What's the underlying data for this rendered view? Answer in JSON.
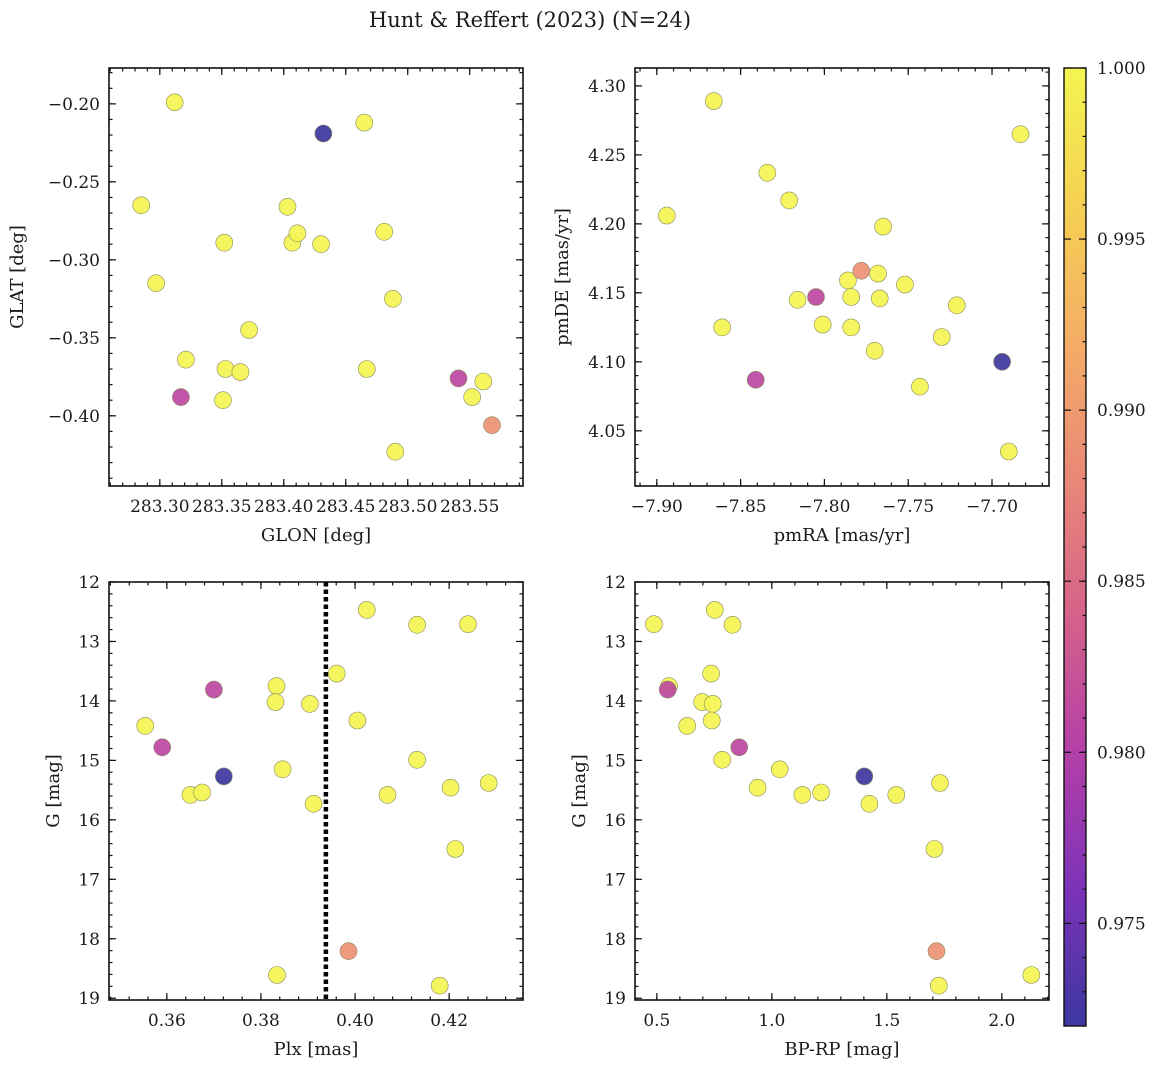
{
  "figure": {
    "title": "Hunt & Reffert (2023) (N=24)"
  },
  "colorbar": {
    "min": 0.972,
    "max": 1.0,
    "ticks": [
      0.975,
      0.98,
      0.985,
      0.99,
      0.995,
      1.0
    ],
    "tick_labels": [
      "0.975",
      "0.980",
      "0.985",
      "0.990",
      "0.995",
      "1.000"
    ],
    "colormap": "plasma",
    "colormap_stops": [
      "#3d37a0",
      "#7c33b8",
      "#b43fa8",
      "#d5628a",
      "#e98877",
      "#f4ad66",
      "#f5d052",
      "#f4f551"
    ]
  },
  "chart_data": [
    {
      "id": "glon-glat",
      "type": "scatter",
      "xlabel": "GLON [deg]",
      "ylabel": "GLAT [deg]",
      "xlim": [
        283.259,
        283.593
      ],
      "ylim": [
        -0.445,
        -0.177
      ],
      "y_inverted": false,
      "xticks": [
        283.3,
        283.35,
        283.4,
        283.45,
        283.5,
        283.55
      ],
      "xtick_labels": [
        "283.30",
        "283.35",
        "283.40",
        "283.45",
        "283.50",
        "283.55"
      ],
      "yticks": [
        -0.4,
        -0.35,
        -0.3,
        -0.25,
        -0.2
      ],
      "ytick_labels": [
        "−0.40",
        "−0.35",
        "−0.30",
        "−0.25",
        "−0.20"
      ],
      "points": [
        {
          "x": 283.312,
          "y": -0.199,
          "c": 1.0
        },
        {
          "x": 283.285,
          "y": -0.265,
          "c": 1.0
        },
        {
          "x": 283.297,
          "y": -0.315,
          "c": 1.0
        },
        {
          "x": 283.321,
          "y": -0.364,
          "c": 1.0
        },
        {
          "x": 283.352,
          "y": -0.289,
          "c": 1.0
        },
        {
          "x": 283.353,
          "y": -0.37,
          "c": 1.0
        },
        {
          "x": 283.351,
          "y": -0.39,
          "c": 1.0
        },
        {
          "x": 283.365,
          "y": -0.372,
          "c": 1.0
        },
        {
          "x": 283.372,
          "y": -0.345,
          "c": 1.0
        },
        {
          "x": 283.403,
          "y": -0.266,
          "c": 1.0
        },
        {
          "x": 283.407,
          "y": -0.289,
          "c": 1.0
        },
        {
          "x": 283.411,
          "y": -0.283,
          "c": 1.0
        },
        {
          "x": 283.43,
          "y": -0.29,
          "c": 1.0
        },
        {
          "x": 283.432,
          "y": -0.219,
          "c": 0.972
        },
        {
          "x": 283.465,
          "y": -0.212,
          "c": 1.0
        },
        {
          "x": 283.467,
          "y": -0.37,
          "c": 1.0
        },
        {
          "x": 283.481,
          "y": -0.282,
          "c": 1.0
        },
        {
          "x": 283.488,
          "y": -0.325,
          "c": 1.0
        },
        {
          "x": 283.49,
          "y": -0.423,
          "c": 1.0
        },
        {
          "x": 283.541,
          "y": -0.376,
          "c": 0.981
        },
        {
          "x": 283.552,
          "y": -0.388,
          "c": 1.0
        },
        {
          "x": 283.561,
          "y": -0.378,
          "c": 1.0
        },
        {
          "x": 283.568,
          "y": -0.406,
          "c": 0.989
        },
        {
          "x": 283.317,
          "y": -0.388,
          "c": 0.981
        }
      ]
    },
    {
      "id": "pmra-pmde",
      "type": "scatter",
      "xlabel": "pmRA [mas/yr]",
      "ylabel": "pmDE [mas/yr]",
      "xlim": [
        -7.913,
        -7.666
      ],
      "ylim": [
        4.01,
        4.313
      ],
      "y_inverted": false,
      "xticks": [
        -7.9,
        -7.85,
        -7.8,
        -7.75,
        -7.7
      ],
      "xtick_labels": [
        "−7.90",
        "−7.85",
        "−7.80",
        "−7.75",
        "−7.70"
      ],
      "yticks": [
        4.05,
        4.1,
        4.15,
        4.2,
        4.25,
        4.3
      ],
      "ytick_labels": [
        "4.05",
        "4.10",
        "4.15",
        "4.20",
        "4.25",
        "4.30"
      ],
      "points": [
        {
          "x": -7.866,
          "y": 4.289,
          "c": 1.0
        },
        {
          "x": -7.894,
          "y": 4.206,
          "c": 1.0
        },
        {
          "x": -7.834,
          "y": 4.237,
          "c": 1.0
        },
        {
          "x": -7.821,
          "y": 4.217,
          "c": 1.0
        },
        {
          "x": -7.861,
          "y": 4.125,
          "c": 1.0
        },
        {
          "x": -7.841,
          "y": 4.087,
          "c": 0.981
        },
        {
          "x": -7.816,
          "y": 4.145,
          "c": 1.0
        },
        {
          "x": -7.805,
          "y": 4.147,
          "c": 0.981
        },
        {
          "x": -7.801,
          "y": 4.127,
          "c": 1.0
        },
        {
          "x": -7.786,
          "y": 4.159,
          "c": 1.0
        },
        {
          "x": -7.784,
          "y": 4.147,
          "c": 1.0
        },
        {
          "x": -7.784,
          "y": 4.125,
          "c": 1.0
        },
        {
          "x": -7.778,
          "y": 4.166,
          "c": 0.989
        },
        {
          "x": -7.77,
          "y": 4.108,
          "c": 1.0
        },
        {
          "x": -7.768,
          "y": 4.164,
          "c": 1.0
        },
        {
          "x": -7.767,
          "y": 4.146,
          "c": 1.0
        },
        {
          "x": -7.765,
          "y": 4.198,
          "c": 1.0
        },
        {
          "x": -7.752,
          "y": 4.156,
          "c": 1.0
        },
        {
          "x": -7.743,
          "y": 4.082,
          "c": 1.0
        },
        {
          "x": -7.73,
          "y": 4.118,
          "c": 1.0
        },
        {
          "x": -7.721,
          "y": 4.141,
          "c": 1.0
        },
        {
          "x": -7.694,
          "y": 4.1,
          "c": 0.972
        },
        {
          "x": -7.69,
          "y": 4.035,
          "c": 1.0
        },
        {
          "x": -7.683,
          "y": 4.265,
          "c": 1.0
        }
      ]
    },
    {
      "id": "plx-g",
      "type": "scatter",
      "xlabel": "Plx [mas]",
      "ylabel": "G [mag]",
      "xlim": [
        0.3477,
        0.4357
      ],
      "ylim": [
        12.0,
        19.03
      ],
      "y_inverted": true,
      "xticks": [
        0.36,
        0.38,
        0.4,
        0.42
      ],
      "xtick_labels": [
        "0.36",
        "0.38",
        "0.40",
        "0.42"
      ],
      "yticks": [
        12,
        13,
        14,
        15,
        16,
        17,
        18,
        19
      ],
      "ytick_labels": [
        "12",
        "13",
        "14",
        "15",
        "16",
        "17",
        "18",
        "19"
      ],
      "vline": {
        "x": 0.3938,
        "style": "dotted"
      },
      "points": [
        {
          "x": 0.3554,
          "y": 14.42,
          "c": 1.0
        },
        {
          "x": 0.359,
          "y": 14.78,
          "c": 0.981
        },
        {
          "x": 0.365,
          "y": 15.58,
          "c": 1.0
        },
        {
          "x": 0.3675,
          "y": 15.54,
          "c": 1.0
        },
        {
          "x": 0.37,
          "y": 13.81,
          "c": 0.981
        },
        {
          "x": 0.3721,
          "y": 15.27,
          "c": 0.972
        },
        {
          "x": 0.3833,
          "y": 13.75,
          "c": 1.0
        },
        {
          "x": 0.3831,
          "y": 14.02,
          "c": 1.0
        },
        {
          "x": 0.3846,
          "y": 15.15,
          "c": 1.0
        },
        {
          "x": 0.3834,
          "y": 18.61,
          "c": 1.0
        },
        {
          "x": 0.3904,
          "y": 14.05,
          "c": 1.0
        },
        {
          "x": 0.3912,
          "y": 15.73,
          "c": 1.0
        },
        {
          "x": 0.3961,
          "y": 13.54,
          "c": 1.0
        },
        {
          "x": 0.3986,
          "y": 18.21,
          "c": 0.989
        },
        {
          "x": 0.4005,
          "y": 14.33,
          "c": 1.0
        },
        {
          "x": 0.4025,
          "y": 12.47,
          "c": 1.0
        },
        {
          "x": 0.4069,
          "y": 15.58,
          "c": 1.0
        },
        {
          "x": 0.4132,
          "y": 12.72,
          "c": 1.0
        },
        {
          "x": 0.4132,
          "y": 14.99,
          "c": 1.0
        },
        {
          "x": 0.418,
          "y": 18.79,
          "c": 1.0
        },
        {
          "x": 0.4203,
          "y": 15.46,
          "c": 1.0
        },
        {
          "x": 0.4213,
          "y": 16.49,
          "c": 1.0
        },
        {
          "x": 0.424,
          "y": 12.71,
          "c": 1.0
        },
        {
          "x": 0.4284,
          "y": 15.38,
          "c": 1.0
        }
      ]
    },
    {
      "id": "bprp-g",
      "type": "scatter",
      "xlabel": "BP-RP [mag]",
      "ylabel": "G [mag]",
      "xlim": [
        0.405,
        2.205
      ],
      "ylim": [
        12.0,
        19.03
      ],
      "y_inverted": true,
      "xticks": [
        0.5,
        1.0,
        1.5,
        2.0
      ],
      "xtick_labels": [
        "0.5",
        "1.0",
        "1.5",
        "2.0"
      ],
      "yticks": [
        12,
        13,
        14,
        15,
        16,
        17,
        18,
        19
      ],
      "ytick_labels": [
        "12",
        "13",
        "14",
        "15",
        "16",
        "17",
        "18",
        "19"
      ],
      "points": [
        {
          "x": 0.487,
          "y": 12.71,
          "c": 1.0
        },
        {
          "x": 0.752,
          "y": 12.47,
          "c": 1.0
        },
        {
          "x": 0.829,
          "y": 12.72,
          "c": 1.0
        },
        {
          "x": 0.736,
          "y": 13.54,
          "c": 1.0
        },
        {
          "x": 0.547,
          "y": 13.81,
          "c": 0.981
        },
        {
          "x": 0.553,
          "y": 13.75,
          "c": 1.0
        },
        {
          "x": 0.697,
          "y": 14.02,
          "c": 1.0
        },
        {
          "x": 0.743,
          "y": 14.05,
          "c": 1.0
        },
        {
          "x": 0.739,
          "y": 14.33,
          "c": 1.0
        },
        {
          "x": 0.632,
          "y": 14.42,
          "c": 1.0
        },
        {
          "x": 0.858,
          "y": 14.78,
          "c": 0.981
        },
        {
          "x": 0.784,
          "y": 14.99,
          "c": 1.0
        },
        {
          "x": 1.034,
          "y": 15.15,
          "c": 1.0
        },
        {
          "x": 0.938,
          "y": 15.46,
          "c": 1.0
        },
        {
          "x": 1.133,
          "y": 15.58,
          "c": 1.0
        },
        {
          "x": 1.214,
          "y": 15.54,
          "c": 1.0
        },
        {
          "x": 1.402,
          "y": 15.27,
          "c": 0.972
        },
        {
          "x": 1.424,
          "y": 15.73,
          "c": 1.0
        },
        {
          "x": 1.541,
          "y": 15.58,
          "c": 1.0
        },
        {
          "x": 1.731,
          "y": 15.38,
          "c": 1.0
        },
        {
          "x": 1.707,
          "y": 16.49,
          "c": 1.0
        },
        {
          "x": 1.716,
          "y": 18.21,
          "c": 0.989
        },
        {
          "x": 1.726,
          "y": 18.79,
          "c": 1.0
        },
        {
          "x": 2.128,
          "y": 18.61,
          "c": 1.0
        }
      ]
    }
  ]
}
